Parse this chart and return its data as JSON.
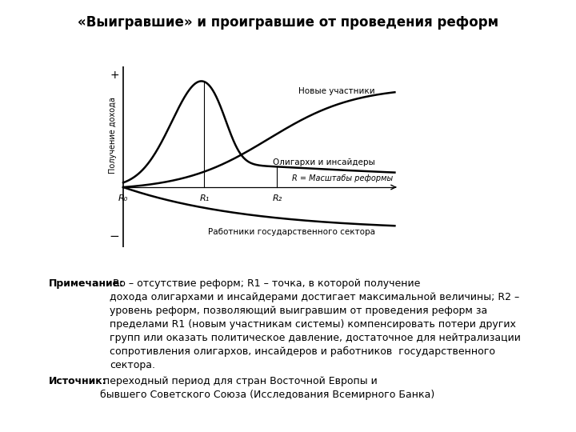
{
  "title": "«Выигравшие» и проигравшие от проведения реформ",
  "ylabel": "Получение дохода",
  "xlabel_label": "R = Масштабы реформы",
  "label_novye": "Новые участники",
  "label_oligarhi": "Олигархи и инсайдеры",
  "label_rabotniki": "Работники государственного сектора",
  "note_bold": "Примечание:",
  "note_rest": " Ro – отсутствие реформ; R1 – точка, в которой получение дохода олигархами и инсайдерами достигает максимальной величины; R2 – уровень реформ, позволяющий выигравшим от проведения реформ за пределами R1 (новым участникам системы) компенсировать потери других групп или оказать политическое давление, достаточное для нейтрализации сопротивления олигархов, инсайдеров и работников  государственного сектора.",
  "source_bold": "Источник:",
  "source_rest": " переходный период для стран Восточной Европы и\nбывшего Советского Союза (Исследования Всемирного Банка)",
  "bg_color": "#ffffff",
  "line_color": "#000000",
  "R0_label": "R₀",
  "R1_label": "R₁",
  "R2_label": "R₂"
}
